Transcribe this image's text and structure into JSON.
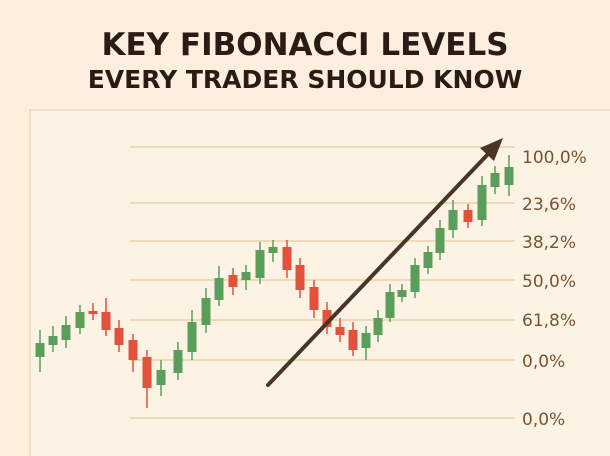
{
  "header": {
    "title": "KEY FIBONACCI LEVELS",
    "subtitle": "EVERY TRADER SHOULD KNOW"
  },
  "levels": [
    "100,0%",
    "23,6%",
    "38,2%",
    "50,0%",
    "61,8%",
    "0,0%",
    "0,0%"
  ]
}
